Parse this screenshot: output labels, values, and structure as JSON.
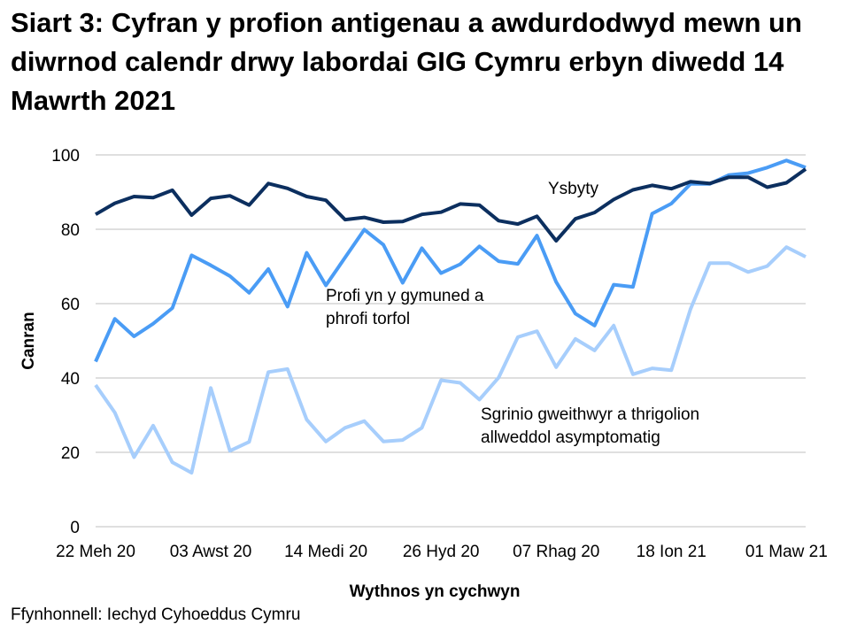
{
  "title": "Siart 3: Cyfran y profion antigenau a awdurdodwyd mewn un diwrnod calendr drwy labordai GIG Cymru erbyn diwedd 14 Mawrth 2021",
  "source": "Ffynhonnell: Iechyd Cyhoeddus Cymru",
  "chart_data": {
    "type": "line",
    "title": "Siart 3: Cyfran y profion antigenau a awdurdodwyd mewn un diwrnod calendr drwy labordai GIG Cymru erbyn diwedd 14 Mawrth 2021",
    "xlabel": "Wythnos yn cychwyn",
    "ylabel": "Canran",
    "ylim": [
      0,
      100
    ],
    "yticks": [
      0,
      20,
      40,
      60,
      80,
      100
    ],
    "xtick_labels": [
      "22 Meh 20",
      "03 Awst 20",
      "14 Medi 20",
      "26 Hyd 20",
      "07 Rhag 20",
      "18 Ion 21",
      "01 Maw 21"
    ],
    "xtick_every_weeks": 6,
    "n_weeks": 38,
    "grid": true,
    "legend": "inline labels",
    "series": [
      {
        "name": "Ysbyty",
        "color": "#0c2f5f",
        "values": [
          84,
          87,
          88.8,
          88.5,
          90.5,
          83.8,
          88.3,
          89,
          86.5,
          92.3,
          91,
          88.8,
          87.8,
          82.6,
          83.2,
          81.9,
          82.1,
          84,
          84.6,
          86.8,
          86.5,
          82.3,
          81.4,
          83.5,
          76.9,
          82.8,
          84.5,
          88,
          90.6,
          91.8,
          90.9,
          92.8,
          92.3,
          94,
          94,
          91.3,
          92.5,
          96.2
        ]
      },
      {
        "name": "Profi yn y gymuned a phrofi torfol",
        "color": "#4a9cf5",
        "values": [
          44.4,
          55.9,
          51.2,
          54.6,
          58.8,
          73,
          70.3,
          67.4,
          62.9,
          69.3,
          59.2,
          73.7,
          64.9,
          72.4,
          79.9,
          75.8,
          65.6,
          74.9,
          68.2,
          70.6,
          75.4,
          71.4,
          70.7,
          78.3,
          65.8,
          57.3,
          54.1,
          65.1,
          64.5,
          84.2,
          86.9,
          92.2,
          92.2,
          94.6,
          95.1,
          96.6,
          98.5,
          96.6
        ]
      },
      {
        "name": "Sgrinio gweithwyr a thrigolion allweddol asymptomatig",
        "color": "#a7cefc",
        "values": [
          38.1,
          30.7,
          18.7,
          27.2,
          17.3,
          14.5,
          37.3,
          20.4,
          22.8,
          41.6,
          42.4,
          28.8,
          22.9,
          26.6,
          28.4,
          22.9,
          23.3,
          26.6,
          39.4,
          38.7,
          34.2,
          40.1,
          51,
          52.6,
          42.9,
          50.5,
          47.4,
          54.1,
          41,
          42.6,
          42.1,
          58.5,
          70.9,
          70.9,
          68.5,
          70.1,
          75.2,
          72.6
        ]
      }
    ],
    "labels": {
      "s0": [
        "Ysbyty"
      ],
      "s1": [
        "Profi yn y gymuned a",
        "phrofi torfol"
      ],
      "s2": [
        "Sgrinio gweithwyr a thrigolion",
        "allweddol asymptomatig"
      ]
    }
  }
}
